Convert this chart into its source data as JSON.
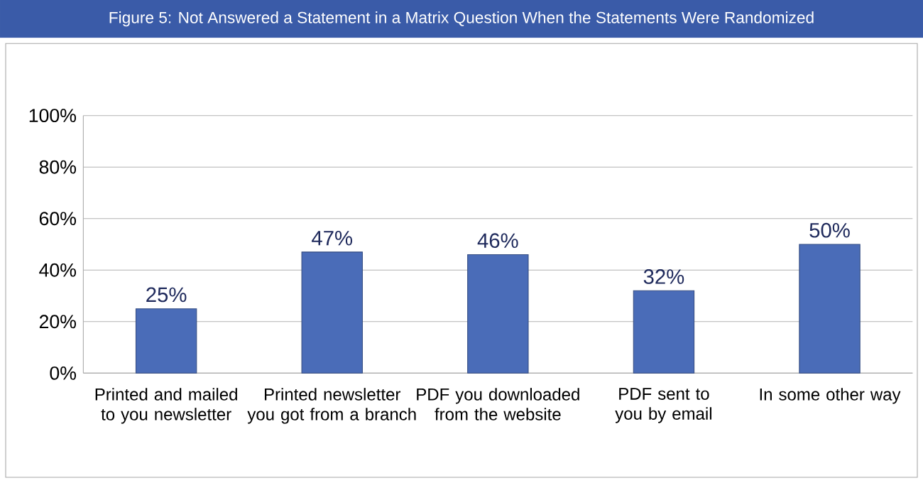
{
  "chart_data": {
    "type": "bar",
    "title": "Figure 5: Not Answered a Statement in a Matrix Question When the Statements Were Randomized",
    "categories": [
      "Printed and mailed to you newsletter",
      "Printed newsletter you got from a branch",
      "PDF you downloaded from the website",
      "PDF sent to you by email",
      "In some other way"
    ],
    "values": [
      25,
      47,
      46,
      32,
      50
    ],
    "value_labels": [
      "25%",
      "47%",
      "46%",
      "32%",
      "50%"
    ],
    "color": "#4a6cb8",
    "ylim": [
      0,
      100
    ],
    "yticks": [
      {
        "value": 0,
        "label": "0%"
      },
      {
        "value": 20,
        "label": "20%"
      },
      {
        "value": 40,
        "label": "40%"
      },
      {
        "value": 60,
        "label": "60%"
      },
      {
        "value": 80,
        "label": "80%"
      },
      {
        "value": 100,
        "label": "100%"
      }
    ],
    "grid": "y"
  }
}
